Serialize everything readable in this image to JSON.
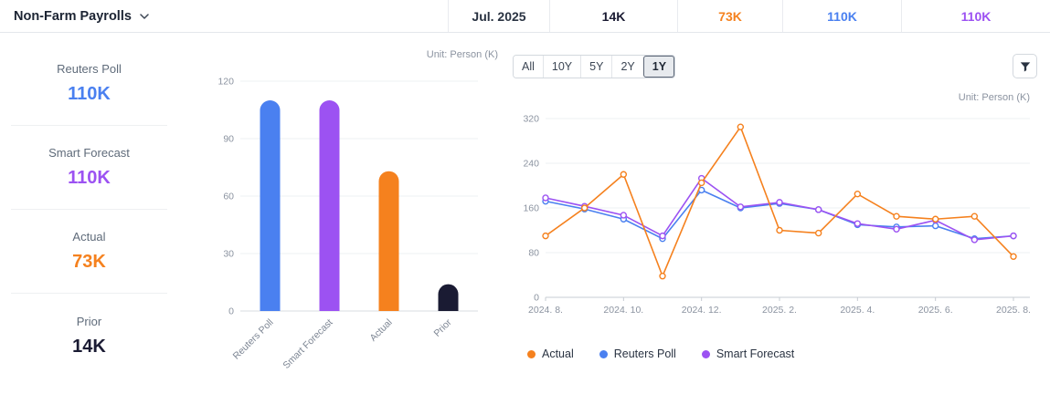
{
  "header": {
    "title": "Non-Farm Payrolls",
    "period": "Jul. 2025",
    "prior": "14K",
    "actual": "73K",
    "reuters_poll": "110K",
    "smart_forecast": "110K"
  },
  "colors": {
    "actual": "#f5811e",
    "reuters_poll": "#4a80f0",
    "smart_forecast": "#9c52f2",
    "prior": "#1a1b33"
  },
  "stats": {
    "items": [
      {
        "label": "Reuters Poll",
        "value": "110K"
      },
      {
        "label": "Smart Forecast",
        "value": "110K"
      },
      {
        "label": "Actual",
        "value": "73K"
      },
      {
        "label": "Prior",
        "value": "14K"
      }
    ]
  },
  "toolbar": {
    "ranges": [
      "All",
      "10Y",
      "5Y",
      "2Y",
      "1Y"
    ],
    "selected_range": "1Y"
  },
  "chart_data": [
    {
      "type": "bar",
      "unit_label": "Unit: Person (K)",
      "categories": [
        "Reuters Poll",
        "Smart Forecast",
        "Actual",
        "Prior"
      ],
      "values": [
        110,
        110,
        73,
        14
      ],
      "bar_colors": [
        "#4a80f0",
        "#9c52f2",
        "#f5811e",
        "#1a1b33"
      ],
      "ylim": [
        0,
        120
      ],
      "yticks": [
        0,
        30,
        60,
        90,
        120
      ]
    },
    {
      "type": "line",
      "unit_label": "Unit: Person (K)",
      "x": [
        "2024. 8.",
        "2024. 9.",
        "2024. 10.",
        "2024. 11.",
        "2024. 12.",
        "2025. 1.",
        "2025. 2.",
        "2025. 3.",
        "2025. 4.",
        "2025. 5.",
        "2025. 6.",
        "2025. 7.",
        "2025. 8."
      ],
      "x_tick_labels": [
        "2024. 8.",
        "2024. 10.",
        "2024. 12.",
        "2025. 2.",
        "2025. 4.",
        "2025. 6.",
        "2025. 8."
      ],
      "ylim": [
        0,
        320
      ],
      "yticks": [
        0,
        80,
        160,
        240,
        320
      ],
      "series": [
        {
          "name": "Reuters Poll",
          "color": "#4a80f0",
          "values": [
            172,
            158,
            140,
            105,
            192,
            160,
            168,
            157,
            130,
            126,
            128,
            105,
            110
          ]
        },
        {
          "name": "Smart Forecast",
          "color": "#9c52f2",
          "values": [
            178,
            163,
            147,
            110,
            213,
            162,
            170,
            157,
            132,
            122,
            138,
            103,
            110
          ]
        },
        {
          "name": "Actual",
          "color": "#f5811e",
          "values": [
            110,
            160,
            220,
            38,
            205,
            305,
            120,
            115,
            185,
            145,
            140,
            145,
            73
          ]
        }
      ],
      "legend": [
        "Actual",
        "Reuters Poll",
        "Smart Forecast"
      ]
    }
  ]
}
